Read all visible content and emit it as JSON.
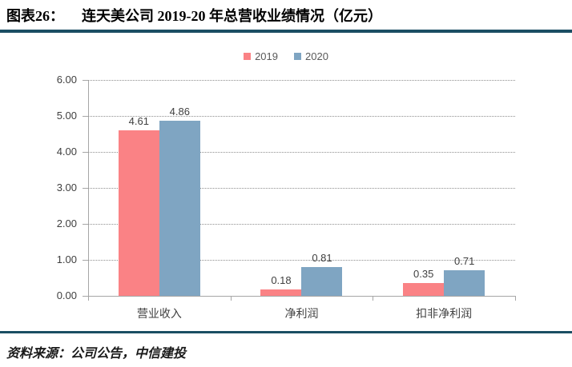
{
  "header": {
    "label": "图表26：",
    "title": "连天美公司 2019-20 年总营收业绩情况（亿元）"
  },
  "chart_data": {
    "type": "bar",
    "title": "连天美公司 2019-20 年总营收业绩情况（亿元）",
    "categories": [
      "营业收入",
      "净利润",
      "扣非净利润"
    ],
    "series": [
      {
        "name": "2019",
        "color": "#FA8285",
        "values": [
          4.61,
          0.18,
          0.35
        ]
      },
      {
        "name": "2020",
        "color": "#7FA5C2",
        "values": [
          4.86,
          0.81,
          0.71
        ]
      }
    ],
    "data_labels": [
      [
        "4.61",
        "0.18",
        "0.35"
      ],
      [
        "4.86",
        "0.81",
        "0.71"
      ]
    ],
    "ylim": [
      0,
      6
    ],
    "ytick_interval": 1,
    "yticklabels": [
      "0.00",
      "1.00",
      "2.00",
      "3.00",
      "4.00",
      "5.00",
      "6.00"
    ],
    "xlabel": "",
    "ylabel": "",
    "grid": "horizontal-dotted",
    "legend_position": "top-center"
  },
  "footer": {
    "source": "资料来源：公司公告，中信建投"
  },
  "colors": {
    "divider": "#1B4E63",
    "axis": "#A6A6A6",
    "grid": "#8F8F8F",
    "label_text": "#404040",
    "legend_text": "#595959"
  }
}
